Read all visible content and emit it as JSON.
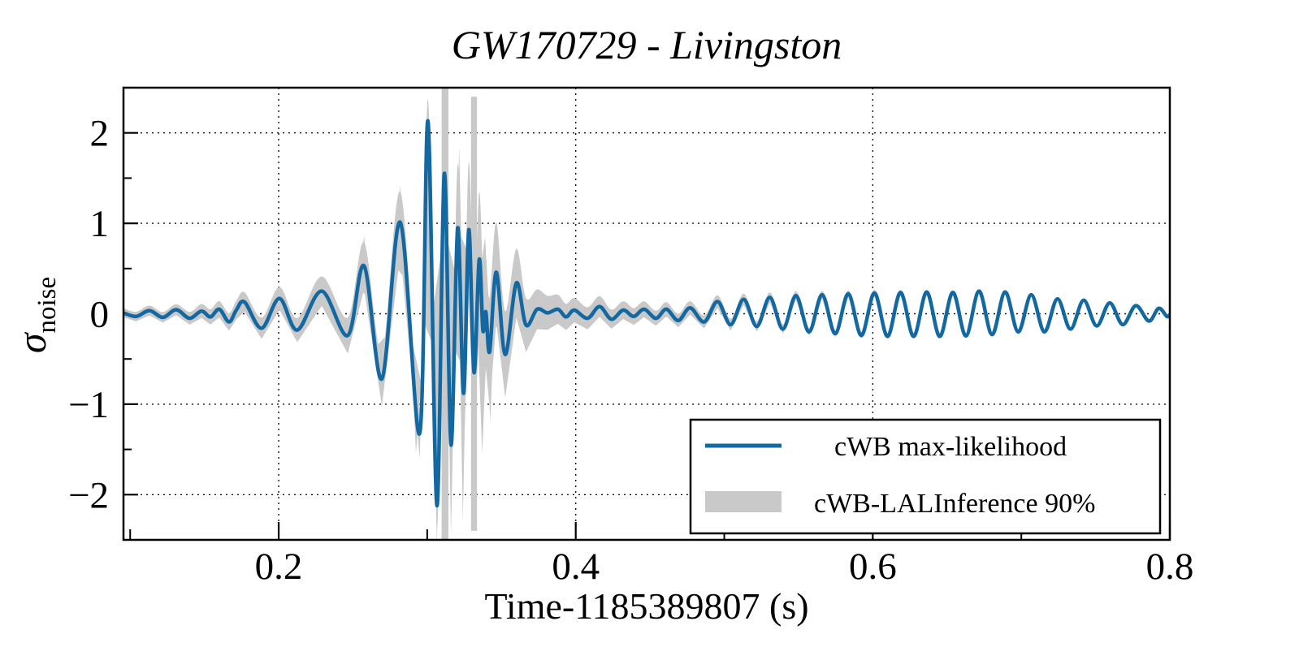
{
  "title": "GW170729 - Livingston",
  "axes": {
    "xlabel": "Time-1185389807 (s)",
    "ylabel_symbol": "σ",
    "ylabel_subscript": "noise",
    "xlim": [
      0.0955,
      0.8
    ],
    "ylim": [
      -2.5,
      2.5
    ],
    "x_ticks": [
      {
        "v": 0.2,
        "label": "0.2"
      },
      {
        "v": 0.4,
        "label": "0.4"
      },
      {
        "v": 0.6,
        "label": "0.6"
      },
      {
        "v": 0.8,
        "label": "0.8"
      }
    ],
    "y_ticks": [
      {
        "v": -2,
        "label": "−2"
      },
      {
        "v": -1,
        "label": "−1"
      },
      {
        "v": 0,
        "label": "0"
      },
      {
        "v": 1,
        "label": "1"
      },
      {
        "v": 2,
        "label": "2"
      }
    ],
    "x_minor_ticks": [
      0.1,
      0.3,
      0.5,
      0.7
    ],
    "y_minor_ticks": [
      -1.5,
      -0.5,
      0.5,
      1.5
    ],
    "grid_style": "dotted"
  },
  "legend": {
    "items": [
      {
        "label": "cWB max-likelihood",
        "type": "line",
        "color": "#1368a1"
      },
      {
        "label": "cWB-LALInference 90%",
        "type": "band",
        "color": "#c9c9c9"
      }
    ]
  },
  "colors": {
    "line": "#1368a1",
    "band": "#c9c9c9",
    "grid": "#111111",
    "spine": "#000000",
    "background": "#ffffff"
  },
  "chart_data": {
    "type": "line",
    "title": "GW170729 - Livingston",
    "xlabel": "Time-1185389807 (s)",
    "ylabel": "sigma_noise",
    "xlim": [
      0.0955,
      0.8
    ],
    "ylim": [
      -2.5,
      2.5
    ],
    "legend_position": "lower right",
    "series": [
      {
        "name": "cWB max-likelihood",
        "points": [
          [
            0.0955,
            0.01
          ],
          [
            0.104,
            -0.03
          ],
          [
            0.113,
            0.035
          ],
          [
            0.122,
            -0.04
          ],
          [
            0.131,
            0.045
          ],
          [
            0.14,
            -0.05
          ],
          [
            0.148,
            0.03
          ],
          [
            0.154,
            -0.035
          ],
          [
            0.16,
            0.05
          ],
          [
            0.1665,
            -0.09
          ],
          [
            0.1715,
            0.04
          ],
          [
            0.177,
            0.13
          ],
          [
            0.1885,
            -0.16
          ],
          [
            0.2005,
            0.17
          ],
          [
            0.2125,
            -0.18
          ],
          [
            0.229,
            0.25
          ],
          [
            0.2465,
            -0.24
          ],
          [
            0.2575,
            0.53
          ],
          [
            0.2695,
            -0.72
          ],
          [
            0.2819,
            1.01
          ],
          [
            0.295,
            -1.32
          ],
          [
            0.3005,
            2.13
          ],
          [
            0.3065,
            -2.12
          ],
          [
            0.3115,
            1.55
          ],
          [
            0.316,
            -1.45
          ],
          [
            0.3205,
            0.95
          ],
          [
            0.3245,
            -0.88
          ],
          [
            0.328,
            0.93
          ],
          [
            0.3315,
            -0.65
          ],
          [
            0.335,
            0.6
          ],
          [
            0.3375,
            -0.18
          ],
          [
            0.3395,
            0.02
          ],
          [
            0.342,
            -0.42
          ],
          [
            0.3465,
            0.46
          ],
          [
            0.3525,
            -0.45
          ],
          [
            0.36,
            0.34
          ],
          [
            0.3665,
            -0.125
          ],
          [
            0.374,
            0.05
          ],
          [
            0.381,
            0.01
          ],
          [
            0.388,
            0.05
          ],
          [
            0.3935,
            -0.035
          ],
          [
            0.399,
            0.04
          ],
          [
            0.408,
            -0.05
          ],
          [
            0.416,
            0.08
          ],
          [
            0.424,
            -0.06
          ],
          [
            0.432,
            0.04
          ],
          [
            0.439,
            -0.03
          ],
          [
            0.446,
            0.05
          ],
          [
            0.454,
            -0.05
          ],
          [
            0.461,
            0.05
          ],
          [
            0.469,
            -0.075
          ],
          [
            0.477,
            0.065
          ],
          [
            0.4865,
            -0.09
          ],
          [
            0.4955,
            0.135
          ],
          [
            0.5043,
            -0.12
          ],
          [
            0.5131,
            0.16
          ],
          [
            0.5219,
            -0.14
          ],
          [
            0.5307,
            0.18
          ],
          [
            0.5395,
            -0.17
          ],
          [
            0.5483,
            0.2
          ],
          [
            0.5571,
            -0.2
          ],
          [
            0.5659,
            0.21
          ],
          [
            0.5747,
            -0.22
          ],
          [
            0.5835,
            0.22
          ],
          [
            0.5923,
            -0.24
          ],
          [
            0.6011,
            0.23
          ],
          [
            0.6099,
            -0.25
          ],
          [
            0.6187,
            0.235
          ],
          [
            0.6275,
            -0.25
          ],
          [
            0.6363,
            0.24
          ],
          [
            0.6451,
            -0.25
          ],
          [
            0.6539,
            0.235
          ],
          [
            0.6627,
            -0.245
          ],
          [
            0.6715,
            0.25
          ],
          [
            0.6803,
            -0.23
          ],
          [
            0.6891,
            0.24
          ],
          [
            0.6979,
            -0.2
          ],
          [
            0.7067,
            0.21
          ],
          [
            0.7155,
            -0.2
          ],
          [
            0.7243,
            0.165
          ],
          [
            0.7331,
            -0.17
          ],
          [
            0.7419,
            0.15
          ],
          [
            0.7507,
            -0.135
          ],
          [
            0.7595,
            0.12
          ],
          [
            0.7683,
            -0.12
          ],
          [
            0.7771,
            0.09
          ],
          [
            0.7859,
            -0.08
          ],
          [
            0.7925,
            0.06
          ],
          [
            0.798,
            -0.03
          ],
          [
            0.8,
            -0.01
          ]
        ]
      },
      {
        "name": "cWB-LALInference 90% band half-width profile",
        "points": [
          [
            0.0955,
            0.05
          ],
          [
            0.13,
            0.06
          ],
          [
            0.15,
            0.08
          ],
          [
            0.17,
            0.1
          ],
          [
            0.19,
            0.12
          ],
          [
            0.21,
            0.13
          ],
          [
            0.2245,
            0.15
          ],
          [
            0.2355,
            0.18
          ],
          [
            0.2465,
            0.2
          ],
          [
            0.2575,
            0.26
          ],
          [
            0.2695,
            0.3
          ],
          [
            0.2819,
            0.34
          ],
          [
            0.2924,
            0.3
          ],
          [
            0.3005,
            0.24
          ],
          [
            0.307,
            0.45
          ],
          [
            0.3115,
            0.55
          ],
          [
            0.316,
            0.6
          ],
          [
            0.3205,
            0.7
          ],
          [
            0.3245,
            0.75
          ],
          [
            0.328,
            0.75
          ],
          [
            0.3315,
            0.8
          ],
          [
            0.335,
            0.75
          ],
          [
            0.3375,
            0.65
          ],
          [
            0.342,
            0.6
          ],
          [
            0.3465,
            0.55
          ],
          [
            0.3525,
            0.48
          ],
          [
            0.36,
            0.38
          ],
          [
            0.3665,
            0.3
          ],
          [
            0.374,
            0.22
          ],
          [
            0.385,
            0.17
          ],
          [
            0.395,
            0.14
          ],
          [
            0.41,
            0.12
          ],
          [
            0.43,
            0.1
          ],
          [
            0.45,
            0.085
          ],
          [
            0.47,
            0.075
          ],
          [
            0.5,
            0.068
          ],
          [
            0.53,
            0.055
          ],
          [
            0.56,
            0.045
          ],
          [
            0.6,
            0.035
          ],
          [
            0.63,
            0.025
          ],
          [
            0.66,
            0.017
          ],
          [
            0.7,
            0.012
          ],
          [
            0.75,
            0.01
          ],
          [
            0.8,
            0.008
          ]
        ]
      }
    ],
    "band_spikes_up": [
      [
        0.2575,
        0.87
      ],
      [
        0.2819,
        1.42
      ],
      [
        0.3005,
        2.28
      ],
      [
        0.3215,
        1.85
      ],
      [
        0.339,
        0.85
      ],
      [
        0.3465,
        0.72
      ]
    ],
    "band_spikes_down": [
      [
        0.2695,
        -1.05
      ],
      [
        0.2924,
        -1.55
      ],
      [
        0.307,
        -2.35
      ],
      [
        0.316,
        -2.45
      ],
      [
        0.324,
        -2.3
      ],
      [
        0.337,
        -1.55
      ],
      [
        0.3425,
        -1.2
      ]
    ],
    "band_columns": [
      {
        "t": 0.312,
        "top": 2.5,
        "bottom": -2.5,
        "halfwidth": 0.0023
      },
      {
        "t": 0.3315,
        "top": 2.4,
        "bottom": -2.4,
        "halfwidth": 0.002
      }
    ]
  }
}
